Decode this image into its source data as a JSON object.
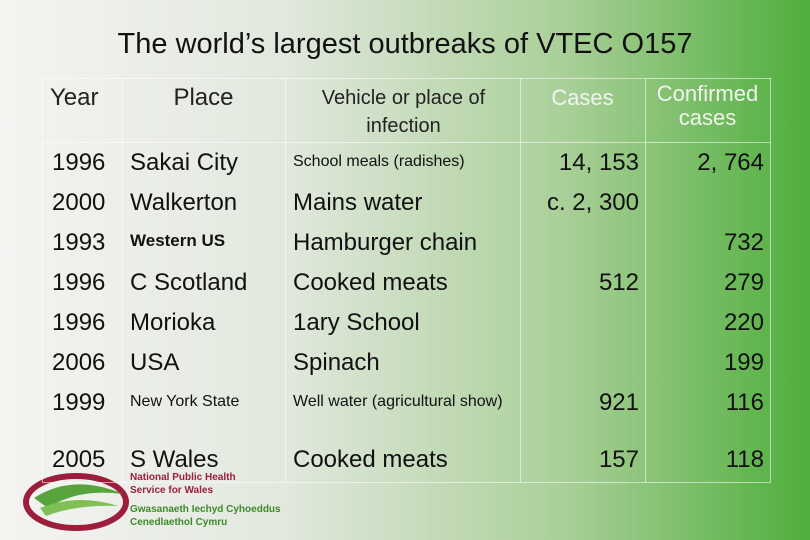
{
  "title": "The world’s largest outbreaks of VTEC O157",
  "table": {
    "headers": [
      "Year",
      "Place",
      "Vehicle or place of infection",
      "Cases",
      "Confirmed cases"
    ],
    "rows": [
      [
        "1996",
        "Sakai City",
        "School meals (radishes)",
        "14, 153",
        "2, 764"
      ],
      [
        "2000",
        "Walkerton",
        "Mains water",
        "c. 2, 300",
        null
      ],
      [
        "1993",
        "Western US",
        "Hamburger chain",
        null,
        "732"
      ],
      [
        "1996",
        "C Scotland",
        "Cooked meats",
        "512",
        "279"
      ],
      [
        "1996",
        "Morioka",
        "1ary School",
        null,
        "220"
      ],
      [
        "2006",
        "USA",
        "Spinach",
        null,
        "199"
      ],
      [
        "1999",
        "New York State",
        "Well water (agricultural show)",
        "921",
        "116"
      ],
      [
        "2005",
        "S Wales",
        "Cooked meats",
        "157",
        "118"
      ]
    ]
  },
  "logo": {
    "lines": [
      "National Public Health",
      "Service for Wales",
      "Gwasanaeth Iechyd Cyhoeddus",
      "Cenedlaethol Cymru"
    ]
  }
}
